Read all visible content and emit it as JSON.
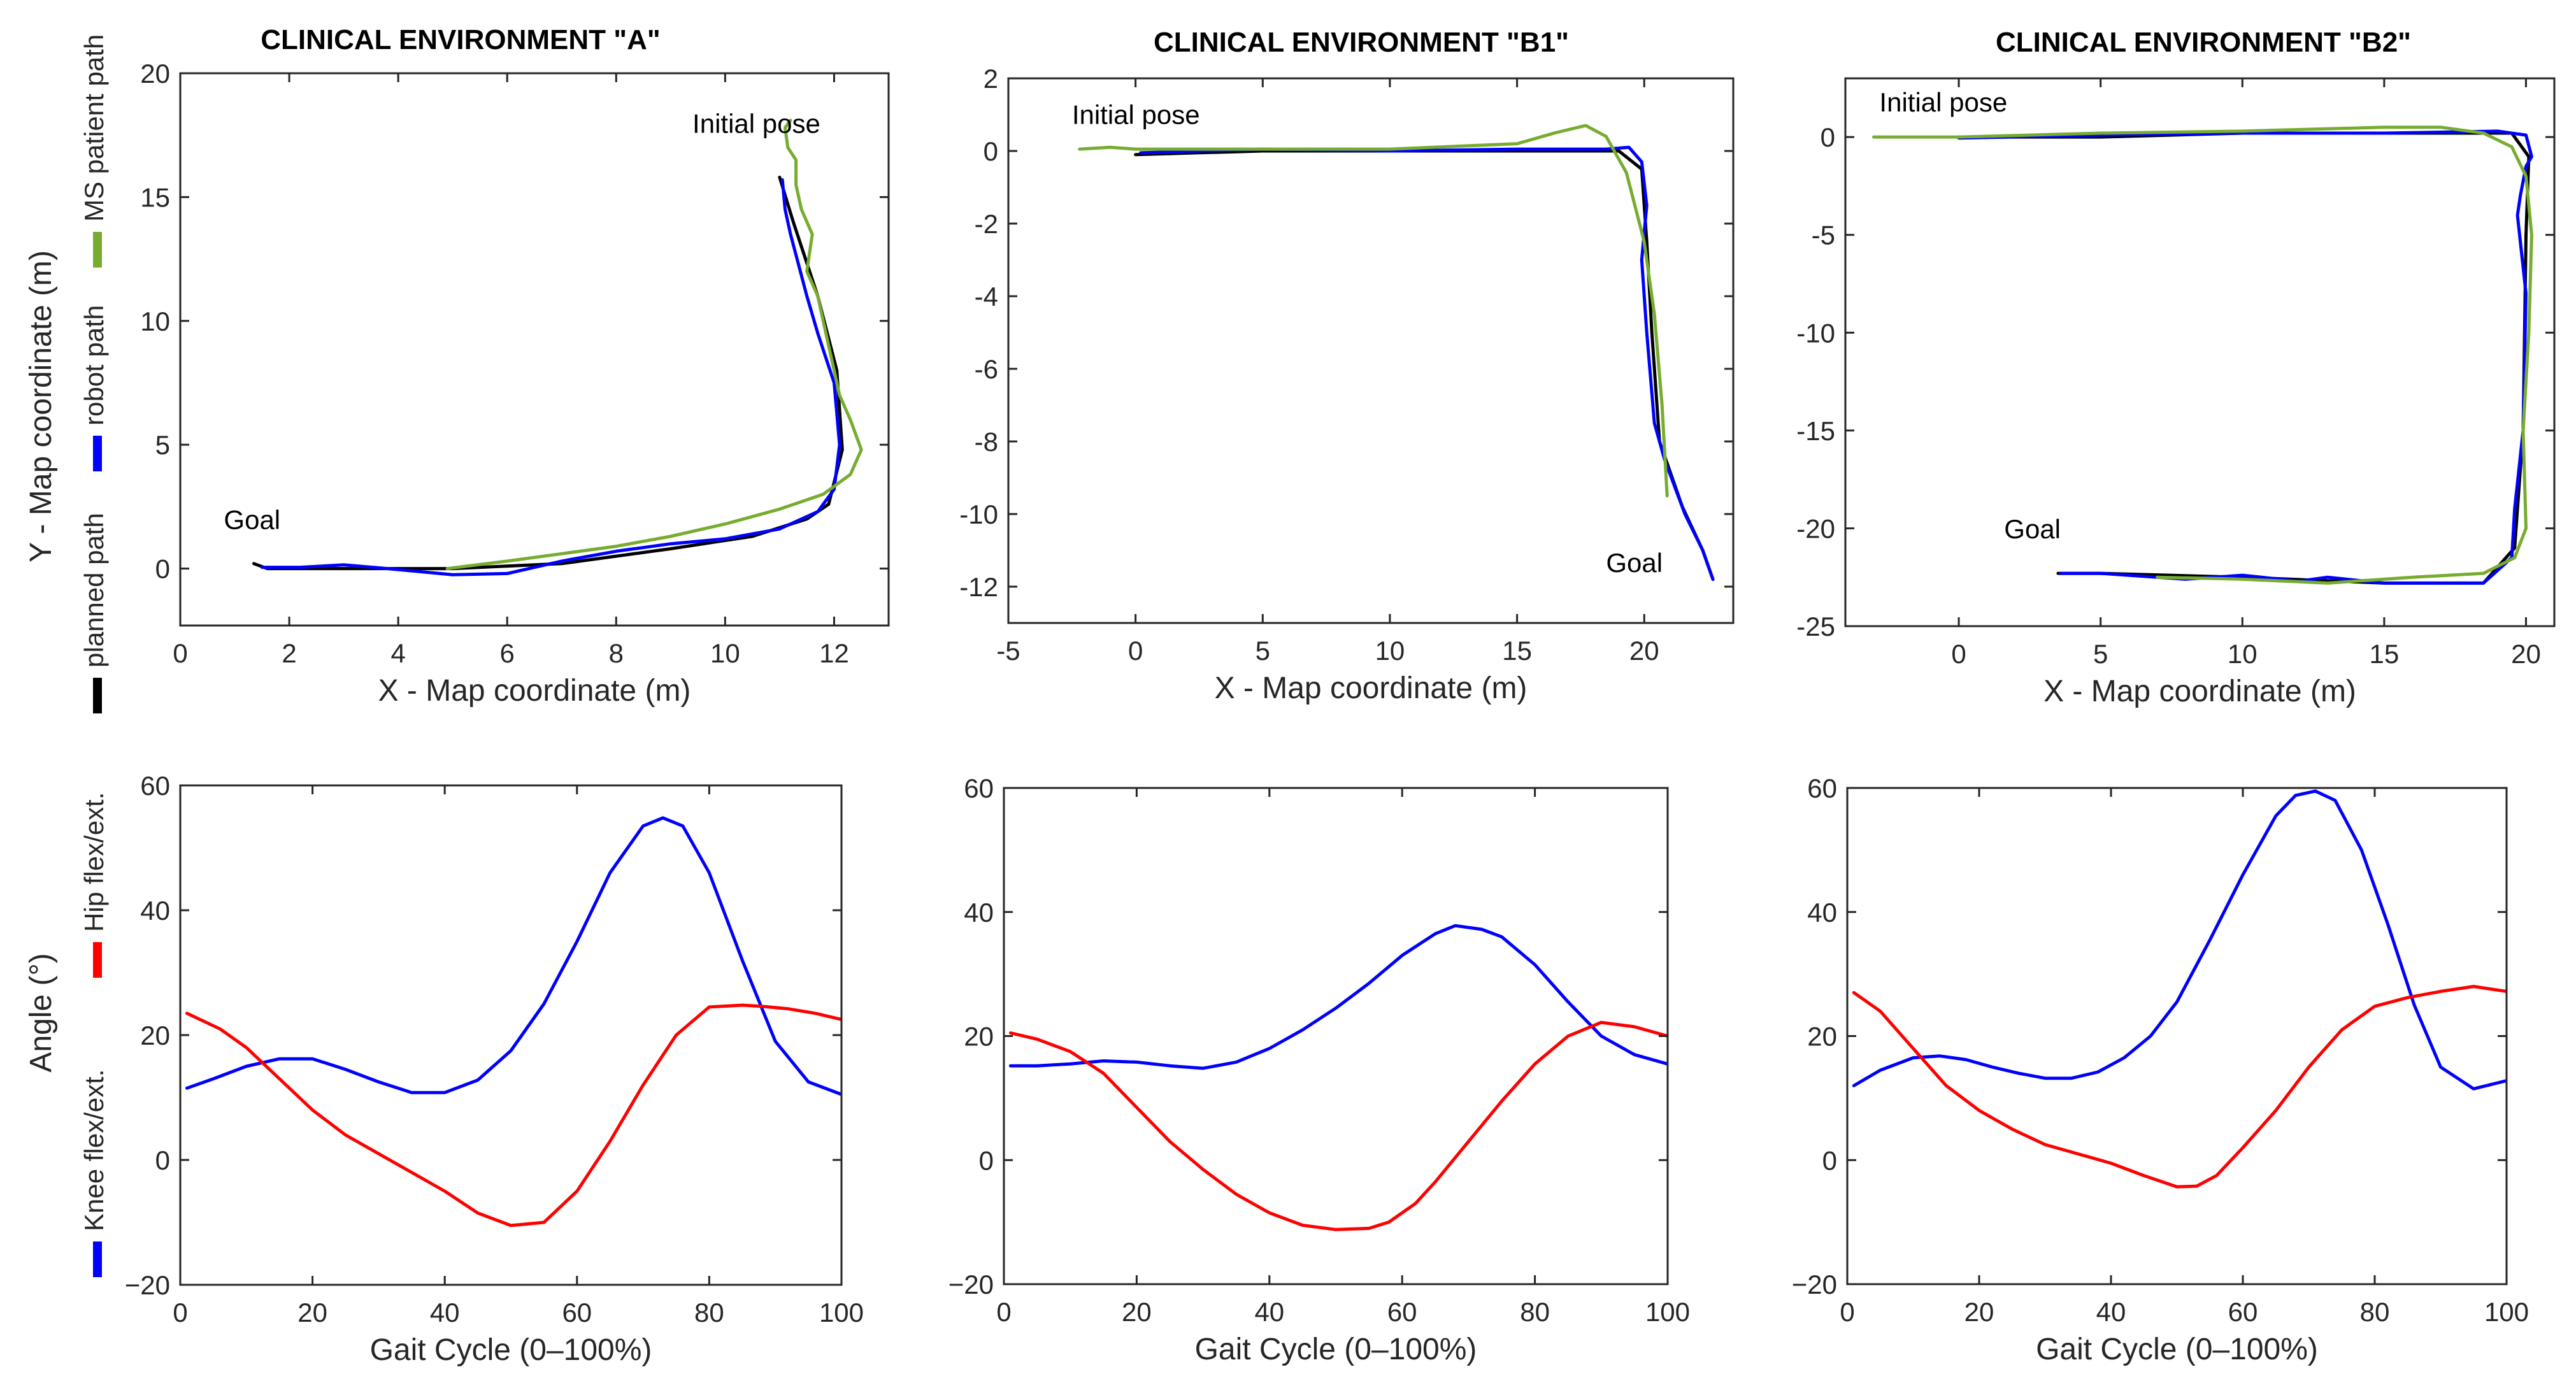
{
  "chart_data": [
    {
      "type": "line",
      "panel": "path-A",
      "title": "CLINICAL ENVIRONMENT \"A\"",
      "xlabel": "X - Map coordinate (m)",
      "ylabel": "Y - Map coordinate (m)",
      "xlim": [
        0,
        13
      ],
      "ylim": [
        -2.3,
        20
      ],
      "xticks": [
        0,
        2,
        4,
        6,
        8,
        10,
        12
      ],
      "yticks": [
        0,
        5,
        10,
        15,
        20
      ],
      "xtick_labels": [
        "0",
        "2",
        "4",
        "6",
        "8",
        "10",
        "12"
      ],
      "ytick_labels": [
        "0",
        "5",
        "10",
        "15",
        "20"
      ],
      "annotations": [
        {
          "text": "Initial pose",
          "x": 9.4,
          "y": 17.6
        },
        {
          "text": "Goal",
          "x": 0.8,
          "y": 1.6
        }
      ],
      "series": [
        {
          "name": "planned path",
          "color": "#000000",
          "x": [
            1.35,
            1.6,
            3,
            5,
            7,
            9,
            10.5,
            11.5,
            11.9,
            12.15,
            12.05,
            11.7,
            11.25,
            11.0
          ],
          "y": [
            0.2,
            0.0,
            0.0,
            0.0,
            0.2,
            0.8,
            1.3,
            2.0,
            2.6,
            4.8,
            8.0,
            11.0,
            14.0,
            15.8
          ]
        },
        {
          "name": "robot path",
          "color": "#0000ff",
          "x": [
            1.5,
            2.2,
            3.0,
            3.8,
            5.0,
            6.0,
            7.0,
            8.0,
            9.0,
            10.0,
            11.0,
            11.7,
            12.0,
            12.1,
            12.0,
            11.7,
            11.5,
            11.2,
            11.1,
            11.05
          ],
          "y": [
            0.05,
            0.05,
            0.15,
            0.0,
            -0.25,
            -0.2,
            0.3,
            0.7,
            1.0,
            1.2,
            1.6,
            2.3,
            3.2,
            5.0,
            7.5,
            9.5,
            11.0,
            13.5,
            14.5,
            15.7
          ]
        },
        {
          "name": "MS patient path",
          "color": "#77ac30",
          "x": [
            4.9,
            6.0,
            7.0,
            8.0,
            9.0,
            10.0,
            11.0,
            11.8,
            12.3,
            12.5,
            12.3,
            12.1,
            11.9,
            11.7,
            11.5,
            11.6,
            11.4,
            11.3,
            11.3,
            11.15,
            11.1,
            11.2
          ],
          "y": [
            0.0,
            0.3,
            0.6,
            0.9,
            1.3,
            1.8,
            2.4,
            3.0,
            3.8,
            4.8,
            6.0,
            7.0,
            9.0,
            11.0,
            12.0,
            13.5,
            14.5,
            15.5,
            16.5,
            17.0,
            17.8,
            18.1
          ]
        }
      ]
    },
    {
      "type": "line",
      "panel": "path-B1",
      "title": "CLINICAL ENVIRONMENT \"B1\"",
      "xlabel": "X - Map coordinate (m)",
      "ylabel": "",
      "xlim": [
        -5,
        23.5
      ],
      "ylim": [
        -13,
        2
      ],
      "xticks": [
        -5,
        0,
        5,
        10,
        15,
        20
      ],
      "yticks": [
        -12,
        -10,
        -8,
        -6,
        -4,
        -2,
        0,
        2
      ],
      "xtick_labels": [
        "-5",
        "0",
        "5",
        "10",
        "15",
        "20"
      ],
      "ytick_labels": [
        "-12",
        "-10",
        "-8",
        "-6",
        "-4",
        "-2",
        "0",
        "2"
      ],
      "annotations": [
        {
          "text": "Initial pose",
          "x": -2.5,
          "y": 0.75
        },
        {
          "text": "Goal",
          "x": 18.5,
          "y": -11.6
        }
      ],
      "series": [
        {
          "name": "planned path",
          "color": "#000000",
          "x": [
            0,
            5,
            10,
            15,
            19,
            19.9,
            20.1,
            20.3,
            20.6,
            21.5,
            22.3,
            22.7
          ],
          "y": [
            -0.1,
            0.0,
            0.0,
            0.0,
            0.0,
            -0.5,
            -2.5,
            -5.0,
            -8.0,
            -9.8,
            -11.0,
            -11.8
          ]
        },
        {
          "name": "robot path",
          "color": "#0000ff",
          "x": [
            0.2,
            5,
            10,
            15,
            18.5,
            19.4,
            19.9,
            20.1,
            19.9,
            20.1,
            20.4,
            20.8,
            21.6,
            22.3,
            22.7
          ],
          "y": [
            -0.05,
            0.05,
            0.0,
            0.05,
            0.05,
            0.1,
            -0.3,
            -1.5,
            -3.0,
            -5.0,
            -7.5,
            -8.5,
            -10.0,
            -11.0,
            -11.8
          ]
        },
        {
          "name": "MS patient path",
          "color": "#77ac30",
          "x": [
            -2.2,
            -1.0,
            0.0,
            5.0,
            10.0,
            15.0,
            16.5,
            17.7,
            18.5,
            19.3,
            20.0,
            20.4,
            20.7,
            20.9
          ],
          "y": [
            0.05,
            0.1,
            0.05,
            0.05,
            0.05,
            0.2,
            0.5,
            0.7,
            0.4,
            -0.6,
            -2.5,
            -4.5,
            -7.0,
            -9.5
          ]
        }
      ]
    },
    {
      "type": "line",
      "panel": "path-B2",
      "title": "CLINICAL ENVIRONMENT \"B2\"",
      "xlabel": "X - Map coordinate (m)",
      "ylabel": "",
      "xlim": [
        -4,
        21
      ],
      "ylim": [
        -25,
        3
      ],
      "xticks": [
        0,
        5,
        10,
        15,
        20
      ],
      "yticks": [
        -25,
        -20,
        -15,
        -10,
        -5,
        0
      ],
      "xtick_labels": [
        "0",
        "5",
        "10",
        "15",
        "20"
      ],
      "ytick_labels": [
        "-25",
        "-20",
        "-15",
        "-10",
        "-5",
        "0"
      ],
      "annotations": [
        {
          "text": "Initial pose",
          "x": -2.8,
          "y": 1.3
        },
        {
          "text": "Goal",
          "x": 1.6,
          "y": -20.5
        }
      ],
      "series": [
        {
          "name": "planned path",
          "color": "#000000",
          "x": [
            0,
            5,
            10,
            15,
            19.5,
            20.1,
            20.0,
            19.9,
            19.6,
            18.5,
            15.0,
            10.0,
            5.0,
            3.5
          ],
          "y": [
            0.0,
            0.0,
            0.2,
            0.2,
            0.2,
            -1.0,
            -5.0,
            -15.0,
            -21.0,
            -22.8,
            -22.8,
            -22.5,
            -22.3,
            -22.3
          ]
        },
        {
          "name": "robot path",
          "color": "#0000ff",
          "x": [
            0,
            5,
            10,
            15,
            19.0,
            20.0,
            20.2,
            20.0,
            19.8,
            19.7,
            20.0,
            19.9,
            19.6,
            19.5,
            18.5,
            17.0,
            15.0,
            13.0,
            12.0,
            10.0,
            8.0,
            5.0,
            3.6
          ],
          "y": [
            -0.05,
            0.1,
            0.2,
            0.2,
            0.3,
            0.1,
            -1.0,
            -1.5,
            -3.0,
            -4.0,
            -8.0,
            -15.0,
            -19.0,
            -21.5,
            -22.8,
            -22.8,
            -22.8,
            -22.5,
            -22.7,
            -22.4,
            -22.6,
            -22.3,
            -22.3
          ]
        },
        {
          "name": "MS patient path",
          "color": "#77ac30",
          "x": [
            -3.0,
            0.0,
            5.0,
            10.0,
            15.0,
            17.0,
            18.5,
            19.5,
            20.0,
            20.2,
            20.1,
            19.9,
            20.0,
            19.6,
            18.5,
            16.0,
            13.0,
            10.0,
            7.0
          ],
          "y": [
            0.0,
            0.0,
            0.2,
            0.3,
            0.5,
            0.5,
            0.2,
            -0.5,
            -2.0,
            -5.0,
            -10.0,
            -15.0,
            -20.0,
            -21.5,
            -22.3,
            -22.5,
            -22.8,
            -22.6,
            -22.5
          ]
        }
      ]
    },
    {
      "type": "line",
      "panel": "gait-A",
      "xlabel": "Gait Cycle (0–100%)",
      "ylabel": "Angle (°)",
      "xlim": [
        0,
        100
      ],
      "ylim": [
        -20,
        60
      ],
      "xticks": [
        0,
        20,
        40,
        60,
        80,
        100
      ],
      "yticks": [
        -20,
        0,
        20,
        40,
        60
      ],
      "xtick_labels": [
        "0",
        "20",
        "40",
        "60",
        "80",
        "100"
      ],
      "ytick_labels": [
        "−20",
        "0",
        "20",
        "40",
        "60"
      ],
      "series": [
        {
          "name": "Knee flex/ext.",
          "color": "#0000ff",
          "x": [
            1,
            5,
            10,
            15,
            20,
            25,
            30,
            35,
            40,
            45,
            50,
            55,
            60,
            65,
            70,
            73,
            76,
            80,
            85,
            90,
            95,
            100
          ],
          "y": [
            11.5,
            13,
            15,
            16.2,
            16.2,
            14.5,
            12.5,
            10.8,
            10.8,
            12.8,
            17.5,
            25,
            35,
            46,
            53.5,
            54.8,
            53.5,
            46,
            32,
            19,
            12.5,
            10.5
          ]
        },
        {
          "name": "Hip flex/ext.",
          "color": "#ff0000",
          "x": [
            1,
            6,
            10,
            15,
            20,
            25,
            30,
            35,
            40,
            45,
            50,
            55,
            60,
            65,
            70,
            75,
            80,
            85,
            88,
            92,
            96,
            100
          ],
          "y": [
            23.5,
            21,
            18,
            13,
            8,
            4,
            1,
            -2,
            -5,
            -8.5,
            -10.5,
            -10,
            -5,
            3,
            12,
            20,
            24.5,
            24.8,
            24.6,
            24.2,
            23.5,
            22.5
          ]
        }
      ]
    },
    {
      "type": "line",
      "panel": "gait-B1",
      "xlabel": "Gait Cycle (0–100%)",
      "ylabel": "",
      "xlim": [
        0,
        100
      ],
      "ylim": [
        -20,
        60
      ],
      "xticks": [
        0,
        20,
        40,
        60,
        80,
        100
      ],
      "yticks": [
        -20,
        0,
        20,
        40,
        60
      ],
      "xtick_labels": [
        "0",
        "20",
        "40",
        "60",
        "80",
        "100"
      ],
      "ytick_labels": [
        "−20",
        "0",
        "20",
        "40",
        "60"
      ],
      "series": [
        {
          "name": "Knee flex/ext.",
          "color": "#0000ff",
          "x": [
            1,
            5,
            10,
            15,
            20,
            25,
            30,
            35,
            40,
            45,
            50,
            55,
            60,
            65,
            68,
            72,
            75,
            80,
            85,
            90,
            95,
            100
          ],
          "y": [
            15.2,
            15.2,
            15.5,
            16,
            15.8,
            15.2,
            14.8,
            15.8,
            18,
            21,
            24.5,
            28.5,
            33,
            36.5,
            37.8,
            37.2,
            36,
            31.5,
            25.5,
            20,
            17,
            15.5
          ]
        },
        {
          "name": "Hip flex/ext.",
          "color": "#ff0000",
          "x": [
            1,
            5,
            10,
            15,
            20,
            25,
            30,
            35,
            40,
            45,
            50,
            55,
            58,
            62,
            65,
            70,
            75,
            80,
            85,
            90,
            95,
            100
          ],
          "y": [
            20.5,
            19.5,
            17.5,
            14,
            8.5,
            3,
            -1.5,
            -5.5,
            -8.5,
            -10.5,
            -11.2,
            -11,
            -10,
            -7,
            -3.5,
            3,
            9.5,
            15.5,
            20,
            22.2,
            21.5,
            20
          ]
        }
      ]
    },
    {
      "type": "line",
      "panel": "gait-B2",
      "xlabel": "Gait Cycle (0–100%)",
      "ylabel": "",
      "xlim": [
        0,
        100
      ],
      "ylim": [
        -20,
        60
      ],
      "xticks": [
        0,
        20,
        40,
        60,
        80,
        100
      ],
      "yticks": [
        -20,
        0,
        20,
        40,
        60
      ],
      "xtick_labels": [
        "0",
        "20",
        "40",
        "60",
        "80",
        "100"
      ],
      "ytick_labels": [
        "−20",
        "0",
        "20",
        "40",
        "60"
      ],
      "series": [
        {
          "name": "Knee flex/ext.",
          "color": "#0000ff",
          "x": [
            1,
            5,
            10,
            14,
            18,
            22,
            26,
            30,
            34,
            38,
            42,
            46,
            50,
            55,
            60,
            65,
            68,
            71,
            74,
            78,
            82,
            86,
            90,
            95,
            100
          ],
          "y": [
            12,
            14.5,
            16.5,
            16.8,
            16.2,
            15,
            14,
            13.2,
            13.2,
            14.2,
            16.5,
            20,
            25.5,
            35.5,
            46,
            55.5,
            58.8,
            59.5,
            58,
            50,
            38,
            25,
            15,
            11.5,
            12.8
          ]
        },
        {
          "name": "Hip flex/ext.",
          "color": "#ff0000",
          "x": [
            1,
            5,
            10,
            15,
            20,
            25,
            30,
            35,
            40,
            45,
            50,
            53,
            56,
            60,
            65,
            70,
            75,
            80,
            85,
            90,
            95,
            100
          ],
          "y": [
            27,
            24,
            18,
            12,
            8,
            5,
            2.5,
            1,
            -0.5,
            -2.5,
            -4.3,
            -4.2,
            -2.5,
            2,
            8,
            15,
            21,
            24.8,
            26.2,
            27.2,
            28,
            27.2
          ]
        }
      ]
    }
  ]
}
